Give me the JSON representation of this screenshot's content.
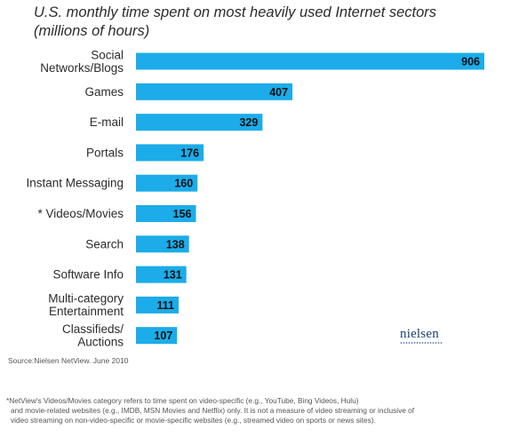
{
  "title_lines": [
    "U.S. monthly time spent on most heavily used Internet sectors",
    "(millions of hours)"
  ],
  "chart_data": {
    "type": "bar",
    "orientation": "horizontal",
    "title": "U.S. monthly time spent on most heavily used Internet sectors (millions of hours)",
    "categories": [
      [
        "Social",
        "Networks/Blogs"
      ],
      [
        "Games"
      ],
      [
        "E-mail"
      ],
      [
        "Portals"
      ],
      [
        "Instant Messaging"
      ],
      [
        "* Videos/Movies"
      ],
      [
        "Search"
      ],
      [
        "Software Info"
      ],
      [
        "Multi-category",
        "Entertainment"
      ],
      [
        "Classifieds/",
        "Auctions"
      ]
    ],
    "values": [
      906,
      407,
      329,
      176,
      160,
      156,
      138,
      131,
      111,
      107
    ],
    "bar_color": "#1bace9",
    "grid": false,
    "legend": "none"
  },
  "logo_text": "nielsen",
  "source": "Source:Nielsen NetView. June 2010",
  "footnote_lines": [
    "*NetView's Videos/Movies category refers to time spent on video-specific (e.g., YouTube, Bing Videos, Hulu)",
    "and movie-related websites (e.g., IMDB, MSN Movies and Netflix) only. It is not a measure of video streaming or inclusive of",
    "video streaming on non-video-specific or movie-specific websites (e.g., streamed video on sports or news sites)."
  ]
}
